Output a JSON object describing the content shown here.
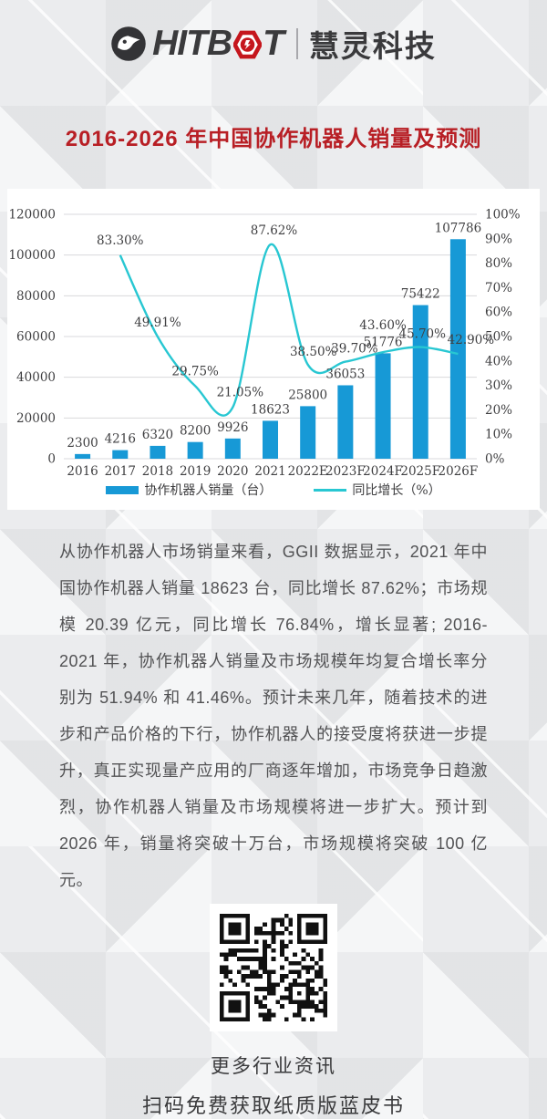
{
  "header": {
    "logo_left": "HITB",
    "logo_right": "T",
    "logo_cn": "慧灵科技"
  },
  "title": "2016-2026 年中国协作机器人销量及预测",
  "chart_data": {
    "type": "bar",
    "categories": [
      "2016",
      "2017",
      "2018",
      "2019",
      "2020",
      "2021",
      "2022E",
      "2023F",
      "2024F",
      "2025F",
      "2026F"
    ],
    "series": [
      {
        "name": "协作机器人销量（台）",
        "type": "bar",
        "values": [
          2300,
          4216,
          6320,
          8200,
          9926,
          18623,
          25800,
          36053,
          51776,
          75422,
          107786
        ],
        "color": "#1799d6"
      },
      {
        "name": "同比增长（%）",
        "type": "line",
        "values": [
          null,
          83.3,
          49.91,
          29.75,
          21.05,
          87.62,
          38.5,
          39.7,
          43.6,
          45.7,
          42.9
        ],
        "color": "#28c7d2"
      }
    ],
    "left_axis": {
      "min": 0,
      "max": 120000,
      "step": 20000
    },
    "right_axis": {
      "min": 0,
      "max": 100,
      "step": 10,
      "suffix": "%"
    },
    "grid": true,
    "legend_position": "bottom",
    "gridline_color": "#d9dadc"
  },
  "body_paragraph": "从协作机器人市场销量来看，GGII 数据显示，2021 年中国协作机器人销量 18623 台，同比增长 87.62%；市场规模 20.39 亿元，同比增长 76.84%，增长显著; 2016-2021 年，协作机器人销量及市场规模年均复合增长率分别为 51.94% 和 41.46%。预计未来几年，随着技术的进步和产品价格的下行，协作机器人的接受度将获进一步提升，真正实现量产应用的厂商逐年增加，市场竞争日趋激烈，协作机器人销量及市场规模将进一步扩大。预计到 2026 年，销量将突破十万台，市场规模将突破 100 亿元。",
  "qr_caption_line1": "更多行业资讯",
  "qr_caption_line2": "扫码免费获取纸质版蓝皮书",
  "colors": {
    "accent_red": "#b81f25",
    "logo_red": "#c5161d",
    "logo_charcoal": "#3a3a3c",
    "bar_blue": "#1799d6",
    "line_cyan": "#28c7d2"
  }
}
